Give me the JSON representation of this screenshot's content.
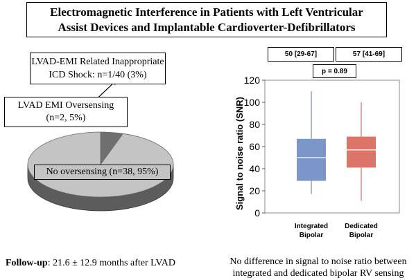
{
  "title": {
    "line1": "Electromagnetic Interference in Patients with Left Ventricular",
    "line2": "Assist Devices and Implantable Cardioverter-Defibrillators"
  },
  "pie": {
    "callout_top": {
      "line1": "LVAD-EMI Related Inappropriate",
      "line2": "ICD Shock: n=1/40 (3%)"
    },
    "callout_left": {
      "line1": "LVAD EMI Oversensing",
      "line2": "(n=2, 5%)"
    },
    "slice_label": "No oversensing (n=38, 95%)",
    "colors": {
      "no_oversensing": "#c4c4c4",
      "oversensing": "#6f6f6f"
    }
  },
  "followup": {
    "label": "Follow-up",
    "text": ": 21.6 ± 12.9 months after LVAD"
  },
  "boxplot": {
    "stats": {
      "integrated": "50 [29-67]",
      "dedicated": "57 [41-69]",
      "p_value": "p = 0.89"
    },
    "note": {
      "line1": "No difference in signal to noise ratio between",
      "line2": "integrated and dedicated bipolar RV sensing"
    }
  },
  "chart_data": [
    {
      "type": "pie",
      "categories": [
        "No oversensing",
        "LVAD EMI Oversensing"
      ],
      "values": [
        38,
        2
      ],
      "percentages": [
        95,
        5
      ]
    },
    {
      "type": "box",
      "ylabel": "Signal to noise ratio (SNR)",
      "ylim": [
        0,
        120
      ],
      "yticks": [
        0,
        20,
        40,
        60,
        80,
        100,
        120
      ],
      "categories": [
        "Integrated Bipolar",
        "Dedicated Bipolar"
      ],
      "category_lines": [
        [
          "Integrated",
          "Bipolar"
        ],
        [
          "Dedicated",
          "Bipolar"
        ]
      ],
      "boxes": [
        {
          "name": "Integrated Bipolar",
          "min": 17,
          "q1": 29,
          "median": 50,
          "q3": 67,
          "max": 110,
          "color": "#7b96c8"
        },
        {
          "name": "Dedicated Bipolar",
          "min": 11,
          "q1": 41,
          "median": 57,
          "q3": 69,
          "max": 100,
          "color": "#dc7469"
        }
      ],
      "grid": false
    }
  ]
}
